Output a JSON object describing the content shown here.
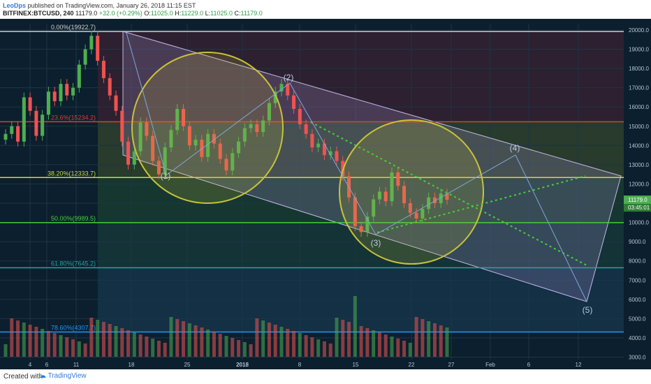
{
  "header": {
    "author": "LeoDps",
    "published_text": "published on TradingView.com, January 26, 2018 11:15 EST",
    "symbol": "BITFINEX:BTCUSD, 240",
    "last": "11179.0",
    "change": "+32.0 (+0.29%)",
    "o_label": "O:",
    "o_value": "11025.0",
    "h_label": "H:",
    "h_value": "11229.0",
    "l_label": "L:",
    "l_value": "11025.0",
    "c_label": "C:",
    "c_value": "11179.0"
  },
  "footer": {
    "created_with": "Created with",
    "brand": "TradingView"
  },
  "colors": {
    "background": "#0c1f2e",
    "up_candle": "#4caf50",
    "down_candle": "#ef5350",
    "fib_red": "#e53935",
    "fib_yellow": "#cddc39",
    "fib_green": "#43d03a",
    "fib_teal": "#26a69a",
    "fib_blue": "#2196f3",
    "circle": "#c8c23a",
    "channel": "#b39ddb"
  },
  "chart_data": {
    "type": "candlestick",
    "yaxis": {
      "ticks": [
        "20000.0",
        "19000.0",
        "18000.0",
        "17000.0",
        "16000.0",
        "15000.0",
        "14000.0",
        "13000.0",
        "12000.0",
        "11000.0",
        "10000.0",
        "9000.0",
        "8000.0",
        "7000.0",
        "6000.0",
        "5000.0",
        "4000.0",
        "3000.0"
      ],
      "ylim": [
        2800,
        20600
      ]
    },
    "xaxis": {
      "ticks": [
        "4",
        "6",
        "11",
        "18",
        "25",
        "2018",
        "8",
        "15",
        "22",
        "27",
        "Feb",
        "6",
        "12"
      ]
    },
    "price_label": "11179.0",
    "time_label": "03:45:01",
    "fib_levels": [
      {
        "label": "0.00%(19922.7)",
        "value": 19922.7
      },
      {
        "label": "23.6%(15234.2)",
        "value": 15234.2
      },
      {
        "label": "38.20%(12333.7)",
        "value": 12333.7
      },
      {
        "label": "50.00%(9989.5)",
        "value": 9989.5
      },
      {
        "label": "61.80%(7645.2)",
        "value": 7645.2
      },
      {
        "label": "78.60%(4307.7)",
        "value": 4307.7
      }
    ],
    "wave_labels": [
      "(1)",
      "(2)",
      "(3)",
      "(4)",
      "(5)"
    ],
    "close_path": [
      14600,
      15000,
      14200,
      16500,
      15800,
      14500,
      15600,
      16800,
      16300,
      17200,
      16600,
      17000,
      18200,
      19000,
      19700,
      18400,
      17500,
      16600,
      15800,
      14200,
      13000,
      13700,
      15200,
      14500,
      13200,
      12500,
      13900,
      14800,
      15900,
      15000,
      14000,
      14300,
      13400,
      14600,
      14100,
      13300,
      12700,
      13600,
      14200,
      14900,
      15100,
      14700,
      15300,
      16200,
      16800,
      17200,
      16600,
      15900,
      15100,
      14600,
      13900,
      14100,
      13500,
      13700,
      13200,
      12400,
      11300,
      9800,
      9500,
      10300,
      11200,
      11600,
      11100,
      12600,
      11900,
      11000,
      10500,
      10200,
      10700,
      11300,
      11000,
      11500,
      11179
    ]
  }
}
